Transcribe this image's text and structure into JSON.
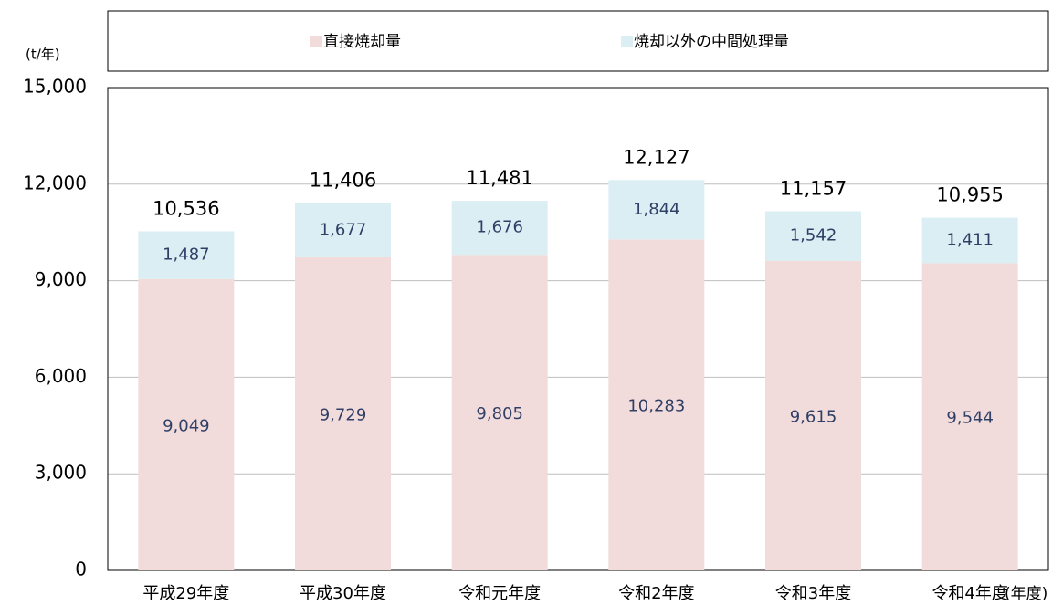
{
  "chart_data": {
    "type": "stacked_bar",
    "y_label": "(t/年)",
    "x_label": "(年度)",
    "categories": [
      "平成29年度",
      "平成30年度",
      "令和元年度",
      "令和2年度",
      "令和3年度",
      "令和4年度"
    ],
    "series": [
      {
        "name": "直接焼却量",
        "color": "#f2dcdb",
        "values": [
          9049,
          9729,
          9805,
          10283,
          9615,
          9544
        ],
        "value_labels": [
          "9,049",
          "9,729",
          "9,805",
          "10,283",
          "9,615",
          "9,544"
        ]
      },
      {
        "name": "焼却以外の中間処理量",
        "color": "#dbeef4",
        "values": [
          1487,
          1677,
          1676,
          1844,
          1542,
          1411
        ],
        "value_labels": [
          "1,487",
          "1,677",
          "1,676",
          "1,844",
          "1,542",
          "1,411"
        ]
      }
    ],
    "totals": [
      10536,
      11406,
      11481,
      12127,
      11157,
      10955
    ],
    "total_labels": [
      "10,536",
      "11,406",
      "11,481",
      "12,127",
      "11,157",
      "10,955"
    ],
    "ylim": [
      0,
      15000
    ],
    "yticks": [
      0,
      {
        "value": 3000,
        "label": "3,000"
      },
      {
        "value": 6000,
        "label": "6,000"
      },
      {
        "value": 9000,
        "label": "9,000"
      },
      {
        "value": 12000,
        "label": "12,000"
      },
      {
        "value": 15000,
        "label": "15,000"
      }
    ],
    "grid": true
  }
}
